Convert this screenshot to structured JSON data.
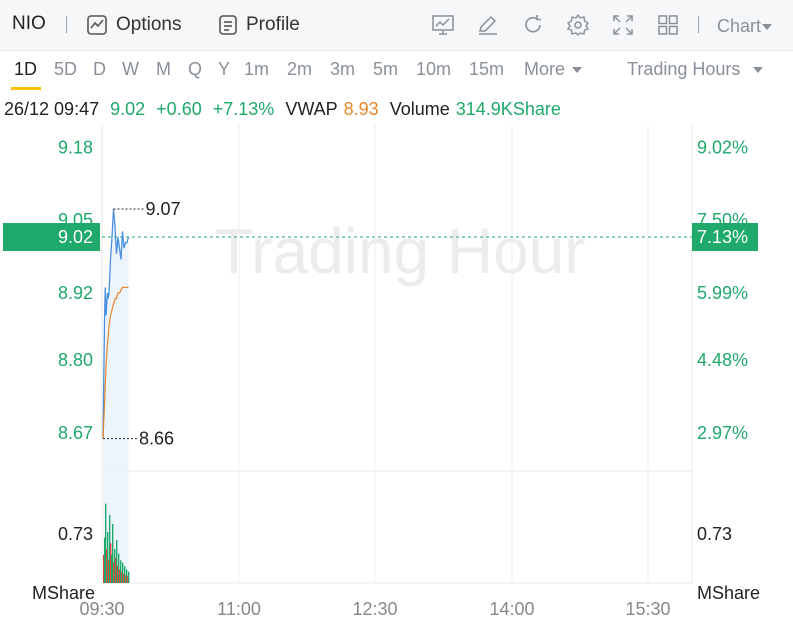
{
  "toolbar": {
    "ticker": "NIO",
    "options_label": "Options",
    "profile_label": "Profile",
    "chart_label": "Chart",
    "icons": [
      "chart-line-icon",
      "edit-icon",
      "refresh-icon",
      "settings-icon",
      "expand-icon",
      "grid-layout-icon"
    ]
  },
  "periods": {
    "items": [
      "1D",
      "5D",
      "D",
      "W",
      "M",
      "Q",
      "Y",
      "1m",
      "2m",
      "3m",
      "5m",
      "10m",
      "15m"
    ],
    "active": "1D",
    "more_label": "More",
    "hours_label": "Trading Hours"
  },
  "info": {
    "datetime": "26/12 09:47",
    "price": "9.02",
    "change": "+0.60",
    "change_pct": "+7.13%",
    "vwap_label": "VWAP",
    "vwap_value": "8.93",
    "volume_label": "Volume",
    "volume_value": "314.9KShare"
  },
  "colors": {
    "up": "#1fa96b",
    "down": "#e0463c",
    "price_line": "#4a90e2",
    "vwap_line": "#e8862a",
    "accent": "#ffc107"
  },
  "chart_data": {
    "type": "line",
    "watermark": "Trading Hour",
    "x_ticks": [
      "09:30",
      "11:00",
      "12:30",
      "14:00",
      "15:30"
    ],
    "y_ticks_left": [
      "9.18",
      "9.05",
      "8.92",
      "8.80",
      "8.67"
    ],
    "y_ticks_right": [
      "9.02%",
      "7.50%",
      "5.99%",
      "4.48%",
      "2.97%"
    ],
    "ylim": [
      8.62,
      9.22
    ],
    "current_price_label": "9.02",
    "current_pct_label": "7.13%",
    "high_label": "9.07",
    "low_label": "8.66",
    "volume_tick": "0.73",
    "volume_unit": "MShare",
    "price": {
      "minutes": [
        0,
        1,
        1.5,
        2,
        3,
        3.5,
        4,
        5,
        6,
        7,
        8,
        9,
        10,
        11,
        12,
        13,
        14,
        15,
        16,
        17
      ],
      "values": [
        8.66,
        8.87,
        8.93,
        8.88,
        8.92,
        8.91,
        8.92,
        8.98,
        9.02,
        9.07,
        9.04,
        8.99,
        9.02,
        9.0,
        8.98,
        9.03,
        9.0,
        9.01,
        9.01,
        9.02
      ]
    },
    "vwap": {
      "minutes": [
        0,
        1,
        2,
        3,
        4,
        5,
        6,
        7,
        8,
        9,
        10,
        11,
        12,
        13,
        14,
        15,
        16,
        17
      ],
      "values": [
        8.66,
        8.72,
        8.79,
        8.83,
        8.86,
        8.88,
        8.89,
        8.9,
        8.91,
        8.91,
        8.92,
        8.92,
        8.925,
        8.93,
        8.93,
        8.93,
        8.93,
        8.93
      ]
    },
    "volume": {
      "max": 0.9,
      "bars": [
        {
          "v": 0.25,
          "up": false
        },
        {
          "v": 0.4,
          "up": true
        },
        {
          "v": 0.7,
          "up": true
        },
        {
          "v": 0.3,
          "up": false
        },
        {
          "v": 0.45,
          "up": true
        },
        {
          "v": 0.2,
          "up": false
        },
        {
          "v": 0.6,
          "up": true
        },
        {
          "v": 0.35,
          "up": false
        },
        {
          "v": 0.25,
          "up": true
        },
        {
          "v": 0.52,
          "up": true
        },
        {
          "v": 0.18,
          "up": false
        },
        {
          "v": 0.3,
          "up": true
        },
        {
          "v": 0.22,
          "up": false
        },
        {
          "v": 0.38,
          "up": true
        },
        {
          "v": 0.15,
          "up": false
        },
        {
          "v": 0.26,
          "up": true
        },
        {
          "v": 0.12,
          "up": false
        },
        {
          "v": 0.2,
          "up": true
        },
        {
          "v": 0.1,
          "up": false
        },
        {
          "v": 0.18,
          "up": true
        },
        {
          "v": 0.08,
          "up": false
        },
        {
          "v": 0.15,
          "up": true
        },
        {
          "v": 0.07,
          "up": false
        },
        {
          "v": 0.12,
          "up": true
        },
        {
          "v": 0.06,
          "up": false
        },
        {
          "v": 0.1,
          "up": true
        }
      ]
    }
  }
}
